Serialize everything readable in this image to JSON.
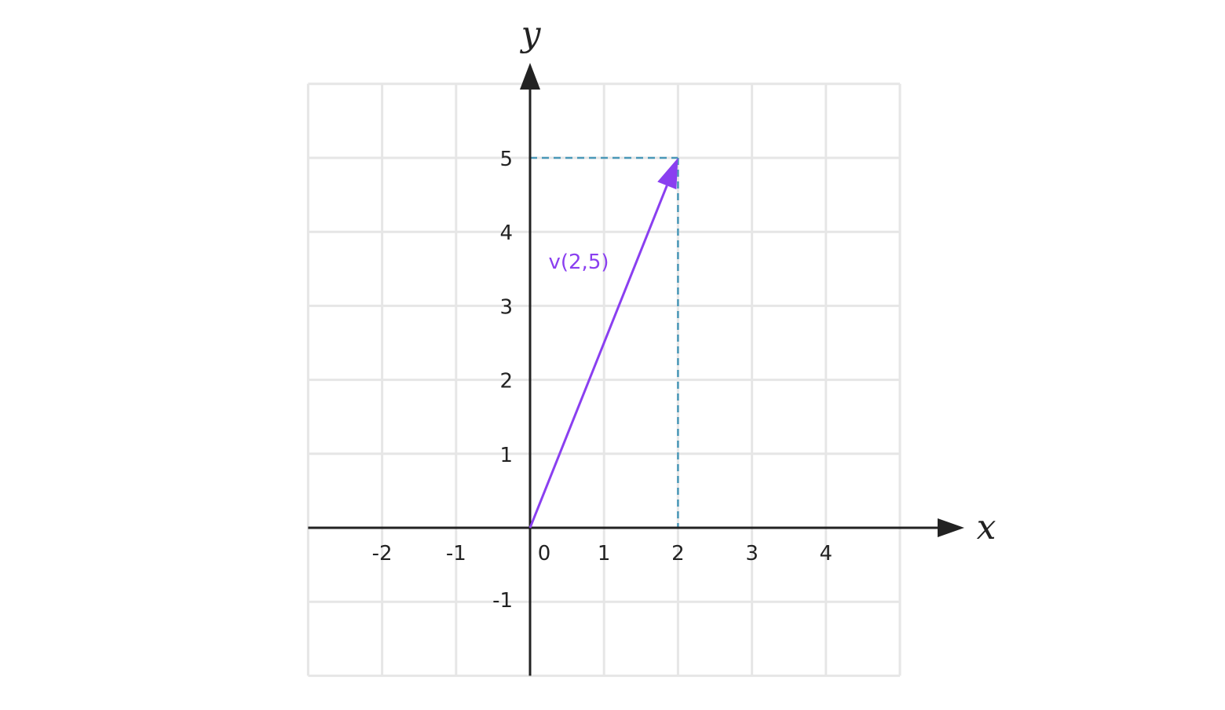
{
  "chart_data": {
    "type": "vector-plot",
    "xlabel": "x",
    "ylabel": "y",
    "xlim": [
      -3,
      5
    ],
    "ylim": [
      -2,
      6
    ],
    "grid": true,
    "x_ticks": [
      "-2",
      "-1",
      "0",
      "1",
      "2",
      "3",
      "4"
    ],
    "x_tick_values": [
      -2,
      -1,
      0,
      1,
      2,
      3,
      4
    ],
    "y_ticks": [
      "-1",
      "1",
      "2",
      "3",
      "4",
      "5"
    ],
    "y_tick_values": [
      -1,
      1,
      2,
      3,
      4,
      5
    ],
    "vector": {
      "label": "v(2,5)",
      "from": [
        0,
        0
      ],
      "to": [
        2,
        5
      ]
    },
    "projection_lines": true
  },
  "colors": {
    "vector": "#8a3ff0",
    "projection": "#4a98b8",
    "grid": "#e6e6e6",
    "axis": "#222222"
  }
}
